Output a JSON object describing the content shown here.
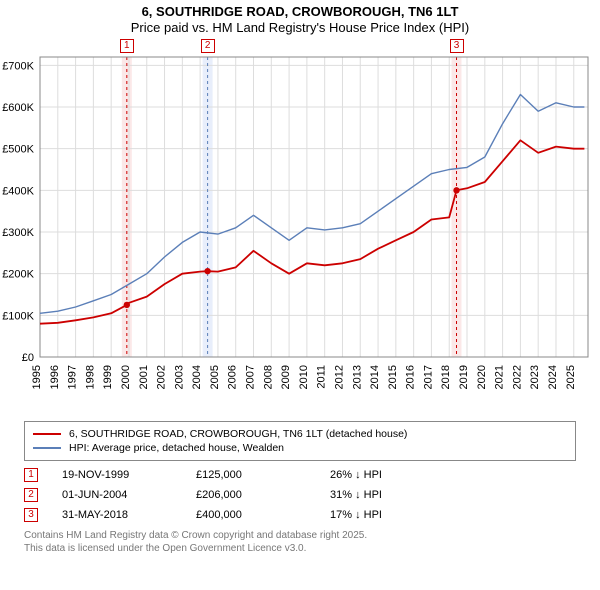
{
  "title": {
    "line1": "6, SOUTHRIDGE ROAD, CROWBOROUGH, TN6 1LT",
    "line2": "Price paid vs. HM Land Registry's House Price Index (HPI)",
    "fontsize": 13
  },
  "chart": {
    "type": "line",
    "background_color": "#ffffff",
    "plot_border_color": "#888888",
    "grid_color": "#dddddd",
    "x_years": [
      1995,
      1996,
      1997,
      1998,
      1999,
      2000,
      2001,
      2002,
      2003,
      2004,
      2005,
      2006,
      2007,
      2008,
      2009,
      2010,
      2011,
      2012,
      2013,
      2014,
      2015,
      2016,
      2017,
      2018,
      2019,
      2020,
      2021,
      2022,
      2023,
      2024,
      2025
    ],
    "yticks": [
      0,
      100000,
      200000,
      300000,
      400000,
      500000,
      600000,
      700000
    ],
    "ytick_labels": [
      "£0",
      "£100K",
      "£200K",
      "£300K",
      "£400K",
      "£500K",
      "£600K",
      "£700K"
    ],
    "ylim": [
      0,
      720000
    ],
    "xlim": [
      1995,
      2025.8
    ],
    "tick_fontsize": 11,
    "series": [
      {
        "name": "hpi",
        "label": "HPI: Average price, detached house, Wealden",
        "color": "#5b7fb8",
        "line_width": 1.4,
        "x": [
          1995,
          1996,
          1997,
          1998,
          1999,
          2000,
          2001,
          2002,
          2003,
          2004,
          2005,
          2006,
          2007,
          2008,
          2009,
          2010,
          2011,
          2012,
          2013,
          2014,
          2015,
          2016,
          2017,
          2018,
          2019,
          2020,
          2021,
          2022,
          2023,
          2024,
          2025,
          2025.6
        ],
        "y": [
          105000,
          110000,
          120000,
          135000,
          150000,
          175000,
          200000,
          240000,
          275000,
          300000,
          295000,
          310000,
          340000,
          310000,
          280000,
          310000,
          305000,
          310000,
          320000,
          350000,
          380000,
          410000,
          440000,
          450000,
          455000,
          480000,
          560000,
          630000,
          590000,
          610000,
          600000,
          600000
        ]
      },
      {
        "name": "price_paid",
        "label": "6, SOUTHRIDGE ROAD, CROWBOROUGH, TN6 1LT (detached house)",
        "color": "#cc0000",
        "line_width": 1.8,
        "x": [
          1995,
          1996,
          1997,
          1998,
          1999,
          1999.88,
          2000,
          2001,
          2002,
          2003,
          2004,
          2004.42,
          2005,
          2006,
          2007,
          2008,
          2009,
          2010,
          2011,
          2012,
          2013,
          2014,
          2015,
          2016,
          2017,
          2018,
          2018.41,
          2019,
          2020,
          2021,
          2022,
          2023,
          2024,
          2025,
          2025.6
        ],
        "y": [
          80000,
          82000,
          88000,
          95000,
          105000,
          125000,
          130000,
          145000,
          175000,
          200000,
          205000,
          206000,
          205000,
          215000,
          255000,
          225000,
          200000,
          225000,
          220000,
          225000,
          235000,
          260000,
          280000,
          300000,
          330000,
          335000,
          400000,
          405000,
          420000,
          470000,
          520000,
          490000,
          505000,
          500000,
          500000
        ]
      }
    ],
    "sale_markers": [
      {
        "num": "1",
        "x": 1999.88,
        "band_color": "#fbe8e8",
        "line_color": "#cc0000",
        "dot_y": 125000
      },
      {
        "num": "2",
        "x": 2004.42,
        "band_color": "#e8eefb",
        "line_color": "#5b7fb8",
        "dot_y": 206000
      },
      {
        "num": "3",
        "x": 2018.41,
        "band_color": "#fbe8e8",
        "line_color": "#cc0000",
        "dot_y": 400000
      }
    ]
  },
  "legend": {
    "border_color": "#888888",
    "items": [
      {
        "color": "#cc0000",
        "label": "6, SOUTHRIDGE ROAD, CROWBOROUGH, TN6 1LT (detached house)"
      },
      {
        "color": "#5b7fb8",
        "label": "HPI: Average price, detached house, Wealden"
      }
    ]
  },
  "sales_table": {
    "marker_color": "#cc0000",
    "rows": [
      {
        "num": "1",
        "date": "19-NOV-1999",
        "price": "£125,000",
        "delta": "26% ↓ HPI"
      },
      {
        "num": "2",
        "date": "01-JUN-2004",
        "price": "£206,000",
        "delta": "31% ↓ HPI"
      },
      {
        "num": "3",
        "date": "31-MAY-2018",
        "price": "£400,000",
        "delta": "17% ↓ HPI"
      }
    ]
  },
  "footer": {
    "line1": "Contains HM Land Registry data © Crown copyright and database right 2025.",
    "line2": "This data is licensed under the Open Government Licence v3.0.",
    "color": "#777777"
  }
}
